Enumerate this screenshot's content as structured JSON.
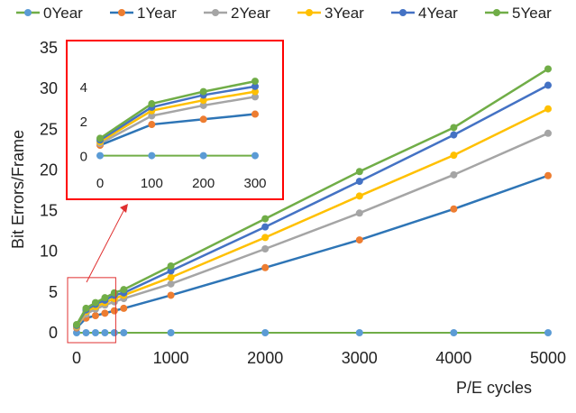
{
  "chart_data": {
    "type": "line",
    "xlabel": "P/E cycles",
    "ylabel": "Bit Errors/Frame",
    "xlim": [
      0,
      5000
    ],
    "ylim": [
      0,
      35
    ],
    "xticks": [
      0,
      1000,
      2000,
      3000,
      4000,
      5000
    ],
    "yticks": [
      0,
      5,
      10,
      15,
      20,
      25,
      30,
      35
    ],
    "grid": false,
    "legend_position": "top",
    "x": [
      0,
      100,
      200,
      300,
      400,
      500,
      1000,
      2000,
      3000,
      4000,
      5000
    ],
    "series": [
      {
        "name": "0Year",
        "color": "#5B9BD5",
        "line_color": "#70AD47",
        "values": [
          0,
          0,
          0,
          0,
          0,
          0,
          0,
          0,
          0,
          0,
          0
        ]
      },
      {
        "name": "1Year",
        "color": "#ED7D31",
        "line_color": "#2E75B6",
        "values": [
          0.6,
          1.8,
          2.1,
          2.4,
          2.7,
          3.0,
          4.6,
          8.0,
          11.4,
          15.2,
          19.3
        ]
      },
      {
        "name": "2Year",
        "color": "#A5A5A5",
        "line_color": "#A5A5A5",
        "values": [
          0.7,
          2.3,
          2.9,
          3.4,
          3.8,
          4.2,
          6.0,
          10.3,
          14.7,
          19.4,
          24.5
        ]
      },
      {
        "name": "3Year",
        "color": "#FFC000",
        "line_color": "#FFC000",
        "values": [
          0.8,
          2.6,
          3.2,
          3.7,
          4.2,
          4.6,
          6.8,
          11.7,
          16.8,
          21.8,
          27.5
        ]
      },
      {
        "name": "4Year",
        "color": "#4472C4",
        "line_color": "#4472C4",
        "values": [
          0.9,
          2.8,
          3.5,
          4.0,
          4.6,
          4.9,
          7.6,
          13.0,
          18.6,
          24.3,
          30.4
        ]
      },
      {
        "name": "5Year",
        "color": "#70AD47",
        "line_color": "#70AD47",
        "values": [
          1.0,
          3.0,
          3.7,
          4.3,
          4.9,
          5.3,
          8.2,
          14.0,
          19.8,
          25.2,
          32.4
        ]
      }
    ],
    "inset": {
      "x": [
        0,
        100,
        200,
        300
      ],
      "xticks": [
        0,
        100,
        200,
        300
      ],
      "yticks": [
        0,
        2,
        4
      ],
      "ylim": [
        -0.7,
        5.4
      ],
      "zoom_region": {
        "x": [
          0,
          300
        ],
        "y": [
          0,
          5
        ]
      }
    }
  }
}
